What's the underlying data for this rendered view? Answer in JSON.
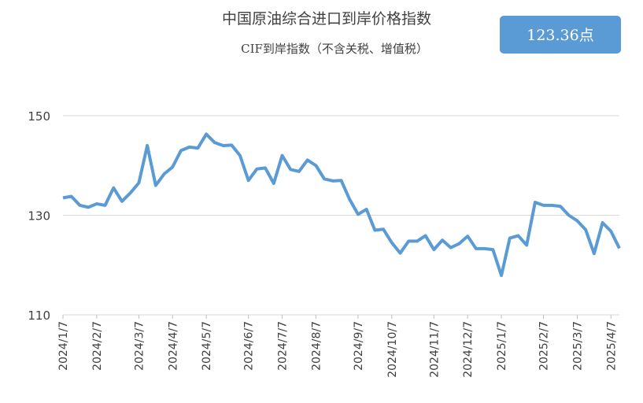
{
  "chart_data": {
    "type": "line",
    "title": "中国原油综合进口到岸价格指数",
    "subtitle": "CIF到岸指数（不含关税、增值税）",
    "annotation": "123.36点",
    "categories": [
      "2024/1/7",
      null,
      null,
      null,
      "2024/2/7",
      null,
      null,
      null,
      null,
      "2024/3/7",
      null,
      null,
      null,
      "2024/4/7",
      null,
      null,
      null,
      "2024/5/7",
      null,
      null,
      null,
      null,
      "2024/6/7",
      null,
      null,
      null,
      "2024/7/7",
      null,
      null,
      null,
      "2024/8/7",
      null,
      null,
      null,
      null,
      "2024/9/7",
      null,
      null,
      null,
      "2024/10/7",
      null,
      null,
      null,
      null,
      "2024/11/7",
      null,
      null,
      null,
      "2024/12/7",
      null,
      null,
      null,
      "2025/1/7",
      null,
      null,
      null,
      null,
      "2025/2/7",
      null,
      null,
      null,
      "2025/3/7",
      null,
      null,
      null,
      "2025/4/7",
      null
    ],
    "series": [
      {
        "name": "CIF到岸指数",
        "color": "#5b9bd5",
        "values": [
          133.5,
          133.8,
          132,
          131.6,
          132.3,
          132,
          135.5,
          132.8,
          134.5,
          136.5,
          144,
          136,
          138.3,
          139.7,
          143,
          143.7,
          143.5,
          146.3,
          144.6,
          144,
          144.1,
          142,
          137,
          139.3,
          139.5,
          136.4,
          142,
          139.2,
          138.8,
          141.1,
          140,
          137.3,
          136.9,
          137,
          133.2,
          130.2,
          131.2,
          127,
          127.2,
          124.5,
          122.4,
          124.8,
          124.8,
          125.9,
          123.1,
          125,
          123.5,
          124.3,
          125.8,
          123.3,
          123.3,
          123.1,
          117.9,
          125.4,
          125.9,
          124,
          132.6,
          132,
          132,
          131.8,
          130,
          128.9,
          127.1,
          122.3,
          128.5,
          126.8,
          123.36
        ]
      }
    ],
    "ylim": [
      110,
      150
    ],
    "yticks": [
      110,
      130,
      150
    ],
    "grid": true
  }
}
